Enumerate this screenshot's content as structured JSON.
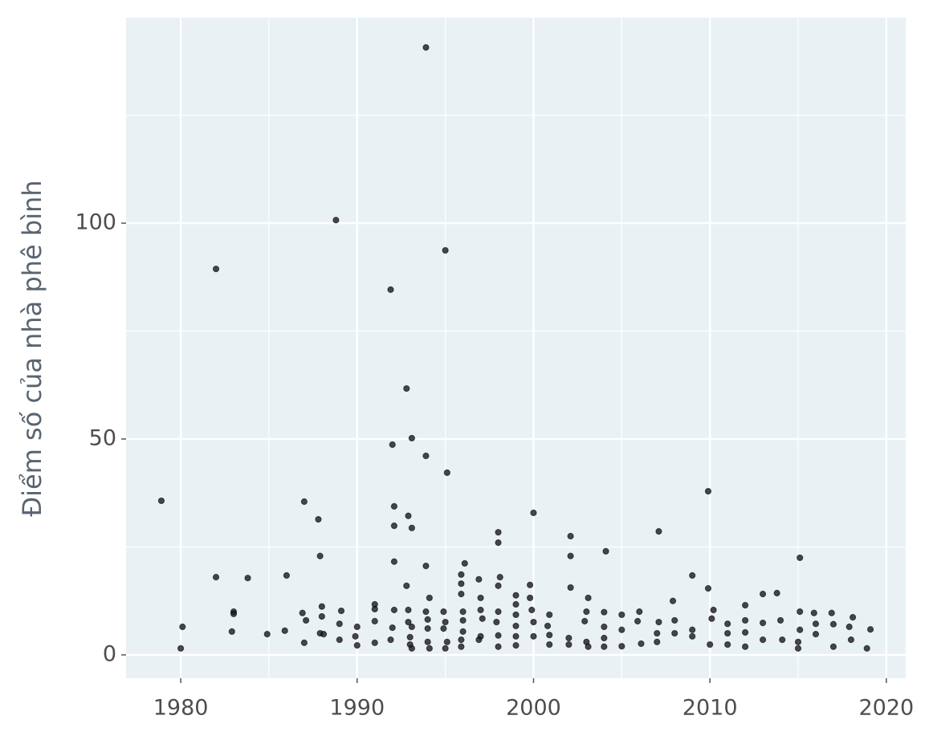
{
  "chart_data": {
    "type": "scatter",
    "y_label": "Điểm số của nhà phê bình",
    "xlim": [
      1976.9,
      2021.1
    ],
    "ylim": [
      -5.4,
      147.6
    ],
    "xticks": [
      1980,
      1990,
      2000,
      2010,
      2020
    ],
    "yticks": [
      0,
      50,
      100
    ],
    "x_minor_grid": [
      1985,
      1995,
      2005,
      2015
    ],
    "y_minor_grid": [
      25,
      75,
      125
    ],
    "grid": true,
    "background": "#e9f1f5",
    "color": "#1a1a1a",
    "x": [
      1978.9,
      1980,
      1980.1,
      1982,
      1982,
      1982.9,
      1983,
      1983,
      1983.8,
      1984.9,
      1985.9,
      1986,
      1987,
      1986.9,
      1987.1,
      1987,
      1987.8,
      1987.9,
      1988,
      1988,
      1987.9,
      1988.1,
      1988.8,
      1989.1,
      1989,
      1989,
      1989.9,
      1990,
      1990,
      1991,
      1991,
      1991,
      1991,
      1991.9,
      1992,
      1992.1,
      1992.1,
      1992.1,
      1992.1,
      1992,
      1991.9,
      1992.8,
      1992.9,
      1993.1,
      1993.1,
      1992.8,
      1992.9,
      1992.9,
      1993.1,
      1993,
      1993,
      1993.1,
      1993.9,
      1993.9,
      1993.9,
      1994.1,
      1993.9,
      1994,
      1994,
      1994,
      1994.1,
      1995,
      1995.1,
      1994.9,
      1995,
      1994.9,
      1995.1,
      1995,
      1996.1,
      1995.9,
      1995.9,
      1995.9,
      1996,
      1996,
      1996,
      1995.9,
      1995.9,
      1996.9,
      1997,
      1997,
      1997.1,
      1997,
      1996.9,
      1998,
      1998,
      1998.1,
      1998,
      1998,
      1997.9,
      1998,
      1998,
      1999,
      1999,
      1999,
      1999,
      1999,
      1999,
      2000,
      1999.8,
      1999.8,
      1999.9,
      2000,
      2000,
      2000.9,
      2000.8,
      2000.9,
      2000.9,
      2002.1,
      2002.1,
      2002.1,
      2002,
      2002,
      2003.1,
      2003,
      2002.9,
      2003,
      2003.1,
      2004.1,
      2004,
      2004,
      2004,
      2004,
      2005,
      2005,
      2005,
      2006,
      2005.9,
      2006.1,
      2007.1,
      2007.1,
      2007,
      2007,
      2007.9,
      2008,
      2008,
      2009,
      2009,
      2009,
      2009.9,
      2009.9,
      2010.2,
      2010.1,
      2010,
      2011,
      2011,
      2011,
      2012,
      2012,
      2012,
      2012,
      2013,
      2013,
      2013,
      2013.8,
      2014,
      2014.1,
      2015.1,
      2015.1,
      2015.1,
      2015,
      2015,
      2015.9,
      2016,
      2016,
      2016.9,
      2017,
      2017,
      2018.1,
      2017.9,
      2018,
      2018.9,
      2019.1
    ],
    "values": [
      35.7,
      1.5,
      6.5,
      89.4,
      18,
      5.4,
      10,
      9.5,
      17.8,
      4.8,
      5.6,
      18.4,
      35.5,
      9.7,
      8,
      2.8,
      31.4,
      22.9,
      11.2,
      8.9,
      5,
      4.8,
      100.7,
      10.2,
      7.2,
      3.5,
      4.3,
      2.2,
      6.5,
      11.7,
      10.6,
      7.8,
      2.8,
      84.6,
      48.7,
      34.4,
      29.9,
      21.6,
      10.4,
      6.3,
      3.5,
      61.7,
      32.2,
      29.4,
      50.2,
      16,
      10.4,
      7.6,
      6.5,
      4.1,
      2.4,
      1.5,
      140.7,
      46.1,
      20.6,
      13.2,
      10,
      8.2,
      6.1,
      3,
      1.5,
      93.7,
      42.2,
      10,
      7.6,
      6.1,
      3,
      1.5,
      21.2,
      18.6,
      16.5,
      14.1,
      10,
      8,
      5.4,
      3.5,
      1.9,
      17.5,
      13.2,
      10.4,
      8.4,
      4.3,
      3.5,
      28.4,
      26,
      18,
      16,
      10,
      7.6,
      4.5,
      1.9,
      13.8,
      11.7,
      9.3,
      6.7,
      4.3,
      2.2,
      32.9,
      16.2,
      13.2,
      10.4,
      7.6,
      4.3,
      9.3,
      6.7,
      4.6,
      2.4,
      27.5,
      22.9,
      15.6,
      3.9,
      2.4,
      13.2,
      10,
      7.8,
      3,
      1.9,
      24,
      9.9,
      6.5,
      3.9,
      1.9,
      9.3,
      5.8,
      2,
      10,
      7.8,
      2.6,
      28.6,
      7.6,
      5,
      3,
      12.5,
      8,
      5,
      18.4,
      5.8,
      4.3,
      37.9,
      15.4,
      10.4,
      8.4,
      2.4,
      7.2,
      5,
      2.4,
      11.5,
      8,
      5.2,
      1.9,
      14.1,
      7.4,
      3.5,
      14.3,
      8,
      3.5,
      22.5,
      10,
      5.8,
      3,
      1.5,
      9.7,
      7.2,
      4.8,
      9.7,
      7.1,
      1.9,
      8.7,
      6.5,
      3.5,
      1.5,
      5.9
    ]
  }
}
